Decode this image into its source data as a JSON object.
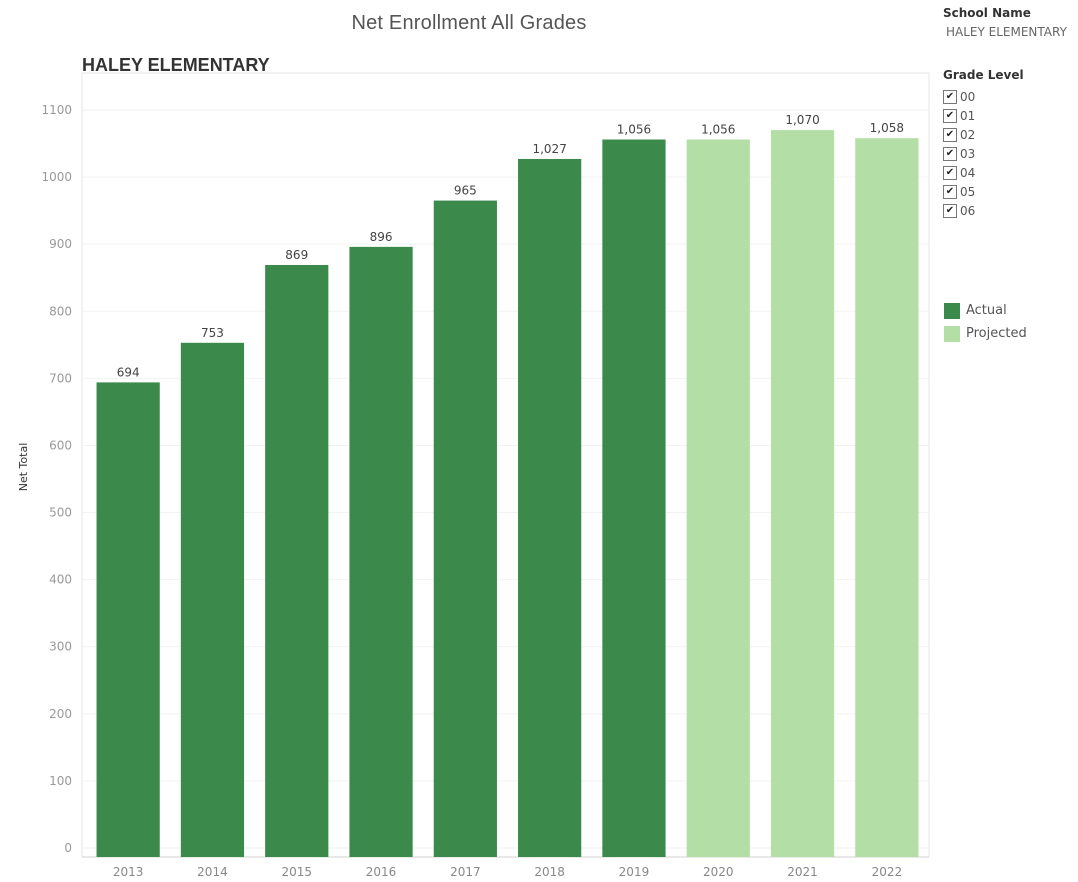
{
  "title": "Net Enrollment  All Grades",
  "school_filter": {
    "heading": "School Name",
    "value": "HALEY ELEMENTARY"
  },
  "grade_filter": {
    "heading": "Grade Level",
    "items": [
      {
        "label": "00",
        "checked": true
      },
      {
        "label": "01",
        "checked": true
      },
      {
        "label": "02",
        "checked": true
      },
      {
        "label": "03",
        "checked": true
      },
      {
        "label": "04",
        "checked": true
      },
      {
        "label": "05",
        "checked": true
      },
      {
        "label": "06",
        "checked": true
      }
    ],
    "check_icon": "checkmark-icon"
  },
  "legend": {
    "items": [
      {
        "label": "Actual",
        "color": "#3c8a4b"
      },
      {
        "label": "Projected",
        "color": "#b3dea6"
      }
    ]
  },
  "chart_data": {
    "type": "bar",
    "title": "Net Enrollment  All Grades",
    "subtitle": "HALEY ELEMENTARY",
    "xlabel": "",
    "ylabel": "Net Total",
    "categories": [
      "2013",
      "2014",
      "2015",
      "2016",
      "2017",
      "2018",
      "2019",
      "2020",
      "2021",
      "2022"
    ],
    "values": [
      694,
      753,
      869,
      896,
      965,
      1027,
      1056,
      1056,
      1070,
      1058
    ],
    "value_labels": [
      "694",
      "753",
      "869",
      "896",
      "965",
      "1,027",
      "1,056",
      "1,056",
      "1,070",
      "1,058"
    ],
    "status": [
      "Actual",
      "Actual",
      "Actual",
      "Actual",
      "Actual",
      "Actual",
      "Actual",
      "Projected",
      "Projected",
      "Projected"
    ],
    "colors": {
      "Actual": "#3c8a4b",
      "Projected": "#b3dea6"
    },
    "yticks": [
      0,
      100,
      200,
      300,
      400,
      500,
      600,
      700,
      800,
      900,
      1000,
      1100
    ],
    "ylim": [
      0,
      1100
    ],
    "grid": true,
    "legend_position": "right"
  }
}
